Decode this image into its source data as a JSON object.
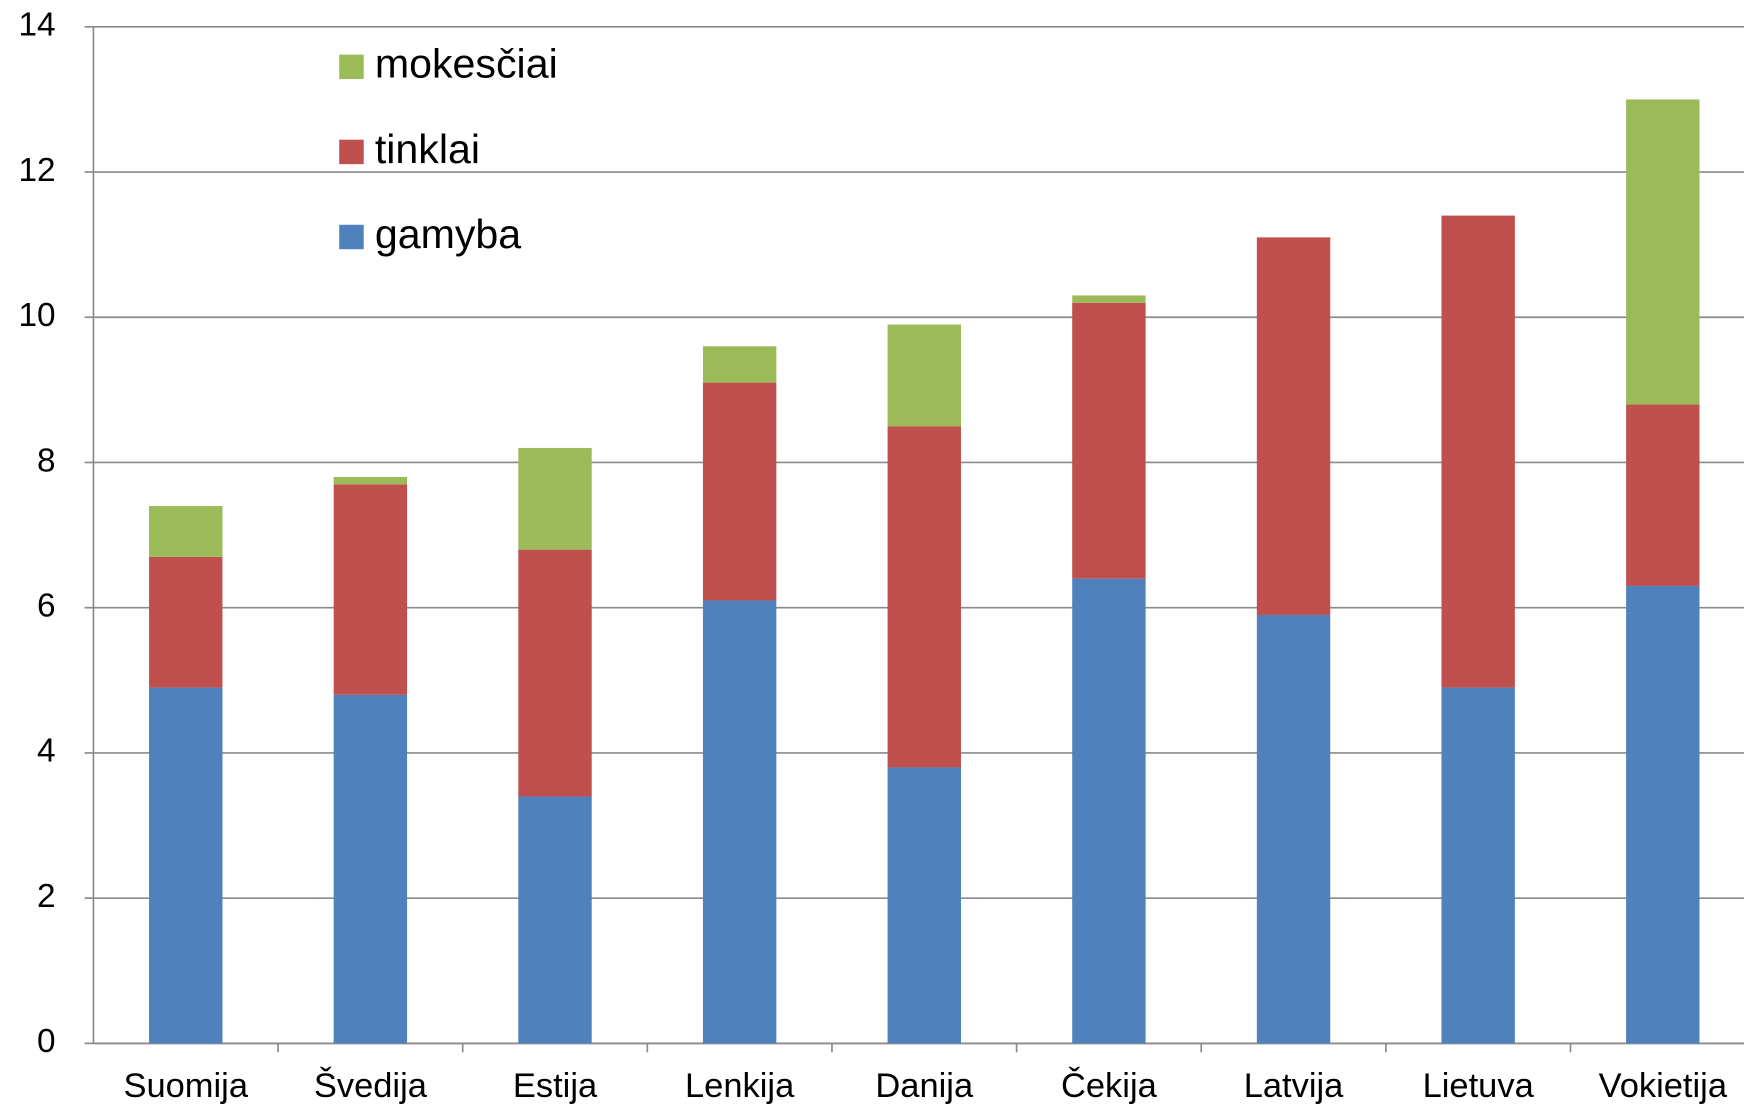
{
  "chart_data": {
    "type": "stacked_bar",
    "categories": [
      "Suomija",
      "Švedija",
      "Estija",
      "Lenkija",
      "Danija",
      "Čekija",
      "Latvija",
      "Lietuva",
      "Vokietija"
    ],
    "series": [
      {
        "name": "gamyba",
        "color": "#4f81bd",
        "values": [
          4.9,
          4.8,
          3.4,
          6.1,
          3.8,
          6.4,
          5.9,
          4.9,
          6.3
        ]
      },
      {
        "name": "tinklai",
        "color": "#c0504d",
        "values": [
          1.8,
          2.9,
          3.4,
          3.0,
          4.7,
          3.8,
          5.2,
          6.5,
          2.5
        ]
      },
      {
        "name": "mokesčiai",
        "color": "#9bbb59",
        "values": [
          0.7,
          0.1,
          1.4,
          0.5,
          1.4,
          0.1,
          0,
          0,
          4.2
        ]
      }
    ],
    "ylim": [
      0,
      14
    ],
    "yticks": [
      0,
      2,
      4,
      6,
      8,
      10,
      12,
      14
    ],
    "grid": true
  }
}
